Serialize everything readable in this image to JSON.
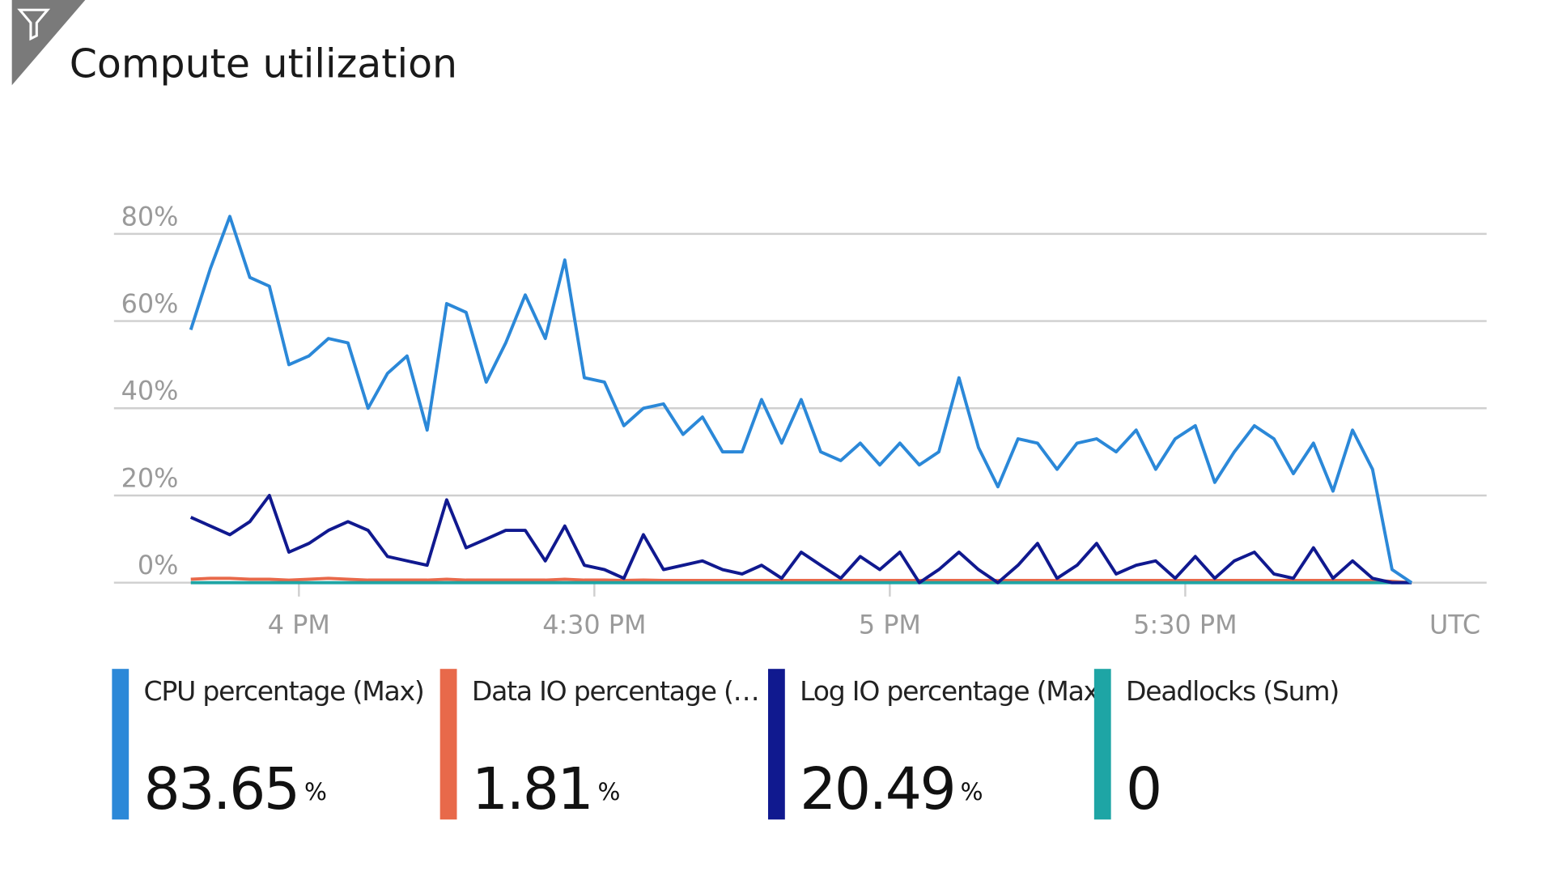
{
  "chart_data": {
    "type": "line",
    "title": "Compute utilization",
    "xlabel": "UTC",
    "x": [
      15.817,
      15.85,
      15.883,
      15.917,
      15.95,
      15.983,
      16.017,
      16.05,
      16.083,
      16.117,
      16.15,
      16.183,
      16.217,
      16.25,
      16.283,
      16.317,
      16.35,
      16.383,
      16.417,
      16.45,
      16.483,
      16.517,
      16.55,
      16.583,
      16.617,
      16.65,
      16.683,
      16.717,
      16.75,
      16.783,
      16.817,
      16.85,
      16.883,
      16.917,
      16.95,
      16.983,
      17.017,
      17.05,
      17.083,
      17.117,
      17.15,
      17.183,
      17.217,
      17.25,
      17.283,
      17.317,
      17.35,
      17.383,
      17.417,
      17.45,
      17.483,
      17.517,
      17.55,
      17.583,
      17.617,
      17.65,
      17.683,
      17.717,
      17.75,
      17.783,
      17.817,
      17.85,
      17.883
    ],
    "xlim": [
      15.687,
      18.01
    ],
    "xticks": [
      {
        "value": 16,
        "label": "4 PM"
      },
      {
        "value": 16.5,
        "label": "4:30 PM"
      },
      {
        "value": 17,
        "label": "5 PM"
      },
      {
        "value": 17.5,
        "label": "5:30 PM"
      }
    ],
    "ylim": [
      0,
      88
    ],
    "yticks": [
      {
        "value": 0,
        "label": "0%"
      },
      {
        "value": 20,
        "label": "20%"
      },
      {
        "value": 40,
        "label": "40%"
      },
      {
        "value": 60,
        "label": "60%"
      },
      {
        "value": 80,
        "label": "80%"
      }
    ],
    "grid": true,
    "series": [
      {
        "name": "CPU percentage (Max)",
        "color": "#2b88d8",
        "summary": 83.65,
        "unit": "%",
        "values": [
          58,
          72,
          84,
          70,
          68,
          50,
          52,
          56,
          55,
          40,
          48,
          52,
          35,
          64,
          62,
          46,
          55,
          66,
          56,
          74,
          47,
          46,
          36,
          40,
          41,
          34,
          38,
          30,
          30,
          42,
          32,
          42,
          30,
          28,
          32,
          27,
          32,
          27,
          30,
          47,
          31,
          22,
          33,
          32,
          26,
          32,
          33,
          30,
          35,
          26,
          33,
          36,
          23,
          30,
          36,
          33,
          25,
          32,
          21,
          35,
          26,
          3,
          0
        ]
      },
      {
        "name": "Data IO percentage (…",
        "color": "#e8694a",
        "summary": 1.81,
        "unit": "%",
        "values": [
          0.8,
          1,
          1,
          0.8,
          0.8,
          0.6,
          0.8,
          1,
          0.8,
          0.6,
          0.6,
          0.6,
          0.6,
          0.8,
          0.6,
          0.6,
          0.6,
          0.6,
          0.6,
          0.8,
          0.6,
          0.6,
          0.5,
          0.6,
          0.5,
          0.5,
          0.5,
          0.5,
          0.5,
          0.5,
          0.5,
          0.5,
          0.5,
          0.5,
          0.5,
          0.5,
          0.5,
          0.5,
          0.5,
          0.5,
          0.5,
          0.5,
          0.5,
          0.5,
          0.5,
          0.5,
          0.5,
          0.5,
          0.5,
          0.5,
          0.5,
          0.5,
          0.5,
          0.5,
          0.5,
          0.5,
          0.5,
          0.5,
          0.5,
          0.5,
          0.5,
          0.3,
          0
        ]
      },
      {
        "name": "Log IO percentage (Max)",
        "color": "#10198f",
        "summary": 20.49,
        "unit": "%",
        "values": [
          15,
          13,
          11,
          14,
          20,
          7,
          9,
          12,
          14,
          12,
          6,
          5,
          4,
          19,
          8,
          10,
          12,
          12,
          5,
          13,
          4,
          3,
          1,
          11,
          3,
          4,
          5,
          3,
          2,
          4,
          1,
          7,
          4,
          1,
          6,
          3,
          7,
          0,
          3,
          7,
          3,
          0,
          4,
          9,
          1,
          4,
          9,
          2,
          4,
          5,
          1,
          6,
          1,
          5,
          7,
          2,
          1,
          8,
          1,
          5,
          1,
          0,
          0
        ]
      },
      {
        "name": "Deadlocks (Sum)",
        "color": "#1ea5a5",
        "summary": 0,
        "values": [
          0,
          0,
          0,
          0,
          0,
          0,
          0,
          0,
          0,
          0,
          0,
          0,
          0,
          0,
          0,
          0,
          0,
          0,
          0,
          0,
          0,
          0,
          0,
          0,
          0,
          0,
          0,
          0,
          0,
          0,
          0,
          0,
          0,
          0,
          0,
          0,
          0,
          0,
          0,
          0,
          0,
          0,
          0,
          0,
          0,
          0,
          0,
          0,
          0,
          0,
          0,
          0,
          0,
          0,
          0,
          0,
          0,
          0,
          0,
          0,
          0,
          0,
          0
        ]
      }
    ]
  }
}
